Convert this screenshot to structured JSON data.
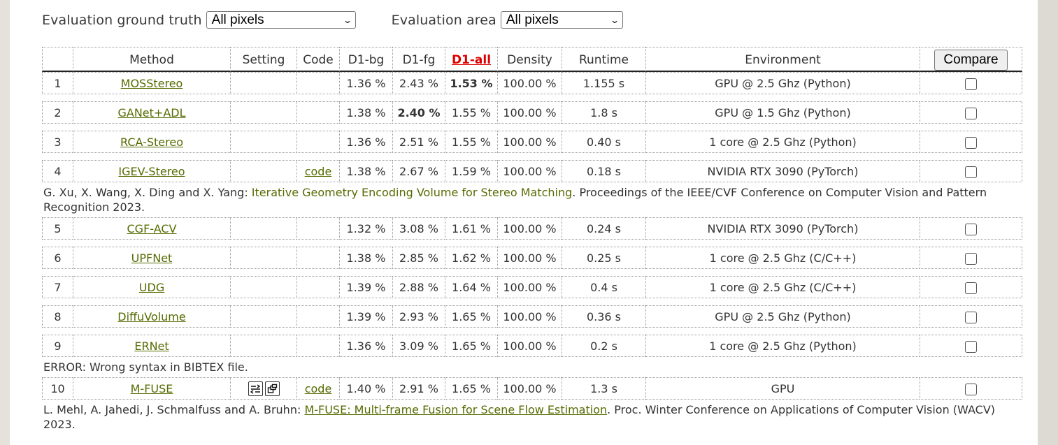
{
  "filters": {
    "ground_truth_label": "Evaluation ground truth",
    "ground_truth_value": "All pixels",
    "area_label": "Evaluation area",
    "area_value": "All pixels"
  },
  "table": {
    "headers": {
      "method": "Method",
      "setting": "Setting",
      "code": "Code",
      "d1bg": "D1-bg",
      "d1fg": "D1-fg",
      "d1all": "D1-all",
      "density": "Density",
      "runtime": "Runtime",
      "environment": "Environment",
      "compare": "Compare"
    },
    "rows": [
      {
        "rank": "1",
        "method": "MOSStereo",
        "code": "",
        "d1bg": "1.36 %",
        "d1fg": "2.43 %",
        "d1all": "1.53 %",
        "density": "100.00 %",
        "runtime": "1.155 s",
        "environment": "GPU @ 2.5 Ghz (Python)"
      },
      {
        "rank": "2",
        "method": "GANet+ADL",
        "code": "",
        "d1bg": "1.38 %",
        "d1fg": "2.40 %",
        "d1all": "1.55 %",
        "density": "100.00 %",
        "runtime": "1.8 s",
        "environment": "GPU @ 1.5 Ghz (Python)"
      },
      {
        "rank": "3",
        "method": "RCA-Stereo",
        "code": "",
        "d1bg": "1.36 %",
        "d1fg": "2.51 %",
        "d1all": "1.55 %",
        "density": "100.00 %",
        "runtime": "0.40 s",
        "environment": "1 core @ 2.5 Ghz (Python)"
      },
      {
        "rank": "4",
        "method": "IGEV-Stereo",
        "code": "code",
        "d1bg": "1.38 %",
        "d1fg": "2.67 %",
        "d1all": "1.59 %",
        "density": "100.00 %",
        "runtime": "0.18 s",
        "environment": "NVIDIA RTX 3090 (PyTorch)"
      },
      {
        "rank": "5",
        "method": "CGF-ACV",
        "code": "",
        "d1bg": "1.32 %",
        "d1fg": "3.08 %",
        "d1all": "1.61 %",
        "density": "100.00 %",
        "runtime": "0.24 s",
        "environment": "NVIDIA RTX 3090 (PyTorch)"
      },
      {
        "rank": "6",
        "method": "UPFNet",
        "code": "",
        "d1bg": "1.38 %",
        "d1fg": "2.85 %",
        "d1all": "1.62 %",
        "density": "100.00 %",
        "runtime": "0.25 s",
        "environment": "1 core @ 2.5 Ghz (C/C++)"
      },
      {
        "rank": "7",
        "method": "UDG",
        "code": "",
        "d1bg": "1.39 %",
        "d1fg": "2.88 %",
        "d1all": "1.64 %",
        "density": "100.00 %",
        "runtime": "0.4 s",
        "environment": "1 core @ 2.5 Ghz (C/C++)"
      },
      {
        "rank": "8",
        "method": "DiffuVolume",
        "code": "",
        "d1bg": "1.39 %",
        "d1fg": "2.93 %",
        "d1all": "1.65 %",
        "density": "100.00 %",
        "runtime": "0.36 s",
        "environment": "GPU @ 2.5 Ghz (Python)"
      },
      {
        "rank": "9",
        "method": "ERNet",
        "code": "",
        "d1bg": "1.36 %",
        "d1fg": "3.09 %",
        "d1all": "1.65 %",
        "density": "100.00 %",
        "runtime": "0.2 s",
        "environment": "1 core @ 2.5 Ghz (Python)"
      },
      {
        "rank": "10",
        "method": "M-FUSE",
        "code": "code",
        "d1bg": "1.40 %",
        "d1fg": "2.91 %",
        "d1all": "1.65 %",
        "density": "100.00 %",
        "runtime": "1.3 s",
        "environment": "GPU"
      }
    ],
    "refs": {
      "igev": {
        "authors": "G. Xu, X. Wang, X. Ding and X. Yang: ",
        "title": "Iterative Geometry Encoding Volume for Stereo Matching",
        "venue": ". Proceedings of the IEEE/CVF Conference on Computer Vision and Pattern Recognition 2023."
      },
      "ernet_error": "ERROR: Wrong syntax in BIBTEX file.",
      "mfuse": {
        "authors": "L. Mehl, A. Jahedi, J. Schmalfuss and A. Bruhn: ",
        "title": "M-FUSE: Multi-frame Fusion for Scene Flow Estimation",
        "venue": ". Proc. Winter Conference on Applications of Computer Vision (WACV) 2023."
      }
    },
    "icons": {
      "setting_1": "stereo-setting-icon",
      "setting_2": "multiview-setting-icon",
      "checkbox": "checkbox"
    }
  }
}
